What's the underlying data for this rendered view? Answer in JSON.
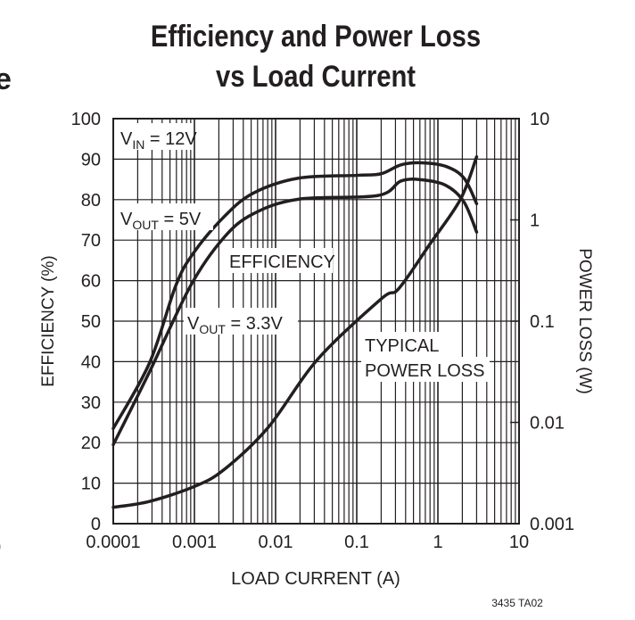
{
  "fragments": {
    "left_top": "e",
    "left_bottom": "0"
  },
  "chart_data": {
    "type": "line",
    "title": "Efficiency and Power Loss",
    "subtitle": "vs Load Current",
    "xlabel": "LOAD CURRENT (A)",
    "ylabel": "EFFICIENCY (%)",
    "y2label": "POWER LOSS (W)",
    "xscale": "log",
    "xlim": [
      0.0001,
      10
    ],
    "ylim": [
      0,
      100
    ],
    "y2scale": "log",
    "y2lim": [
      0.001,
      10
    ],
    "grid": true,
    "xticks": [
      "0.0001",
      "0.001",
      "0.01",
      "0.1",
      "1",
      "10"
    ],
    "yticks": [
      "0",
      "10",
      "20",
      "30",
      "40",
      "50",
      "60",
      "70",
      "80",
      "90",
      "100"
    ],
    "y2ticks": [
      "0.001",
      "0.01",
      "0.1",
      "1",
      "10"
    ],
    "annotations": {
      "vin": "V",
      "vin_sub": "IN",
      "vin_rest": " = 12V",
      "v5": "V",
      "v5_sub": "OUT",
      "v5_rest": " = 5V",
      "v33": "V",
      "v33_sub": "OUT",
      "v33_rest": " = 3.3V",
      "efficiency": "EFFICIENCY",
      "loss1": "TYPICAL",
      "loss2": "POWER LOSS"
    },
    "series": [
      {
        "name": "VOUT = 5V",
        "axis": "left",
        "x": [
          0.0001,
          0.00028,
          0.00059,
          0.00098,
          0.0023,
          0.0053,
          0.019,
          0.1,
          0.2,
          0.35,
          0.63,
          1.26,
          2.1,
          3
        ],
        "y": [
          23.5,
          39.7,
          58.8,
          66.9,
          75.7,
          81.6,
          85.3,
          86,
          86.4,
          88.6,
          89.1,
          88.2,
          85.3,
          79
        ]
      },
      {
        "name": "VOUT = 3.3V",
        "axis": "left",
        "x": [
          0.0001,
          0.00028,
          0.0009,
          0.0023,
          0.0053,
          0.019,
          0.18,
          0.35,
          0.63,
          1.26,
          2.1,
          3
        ],
        "y": [
          19.5,
          37.5,
          58.8,
          70.6,
          76.5,
          80.1,
          81,
          84.6,
          84.9,
          83.5,
          79.4,
          72
        ]
      },
      {
        "name": "TYPICAL POWER LOSS",
        "axis": "right",
        "x": [
          0.0001,
          0.00028,
          0.001,
          0.0023,
          0.008,
          0.033,
          0.2,
          0.33,
          0.8,
          1.9,
          3
        ],
        "y": [
          0.00145,
          0.00166,
          0.00233,
          0.0034,
          0.0088,
          0.042,
          0.166,
          0.21,
          0.58,
          1.6,
          4.2
        ]
      }
    ],
    "footer": "3435 TA02"
  }
}
